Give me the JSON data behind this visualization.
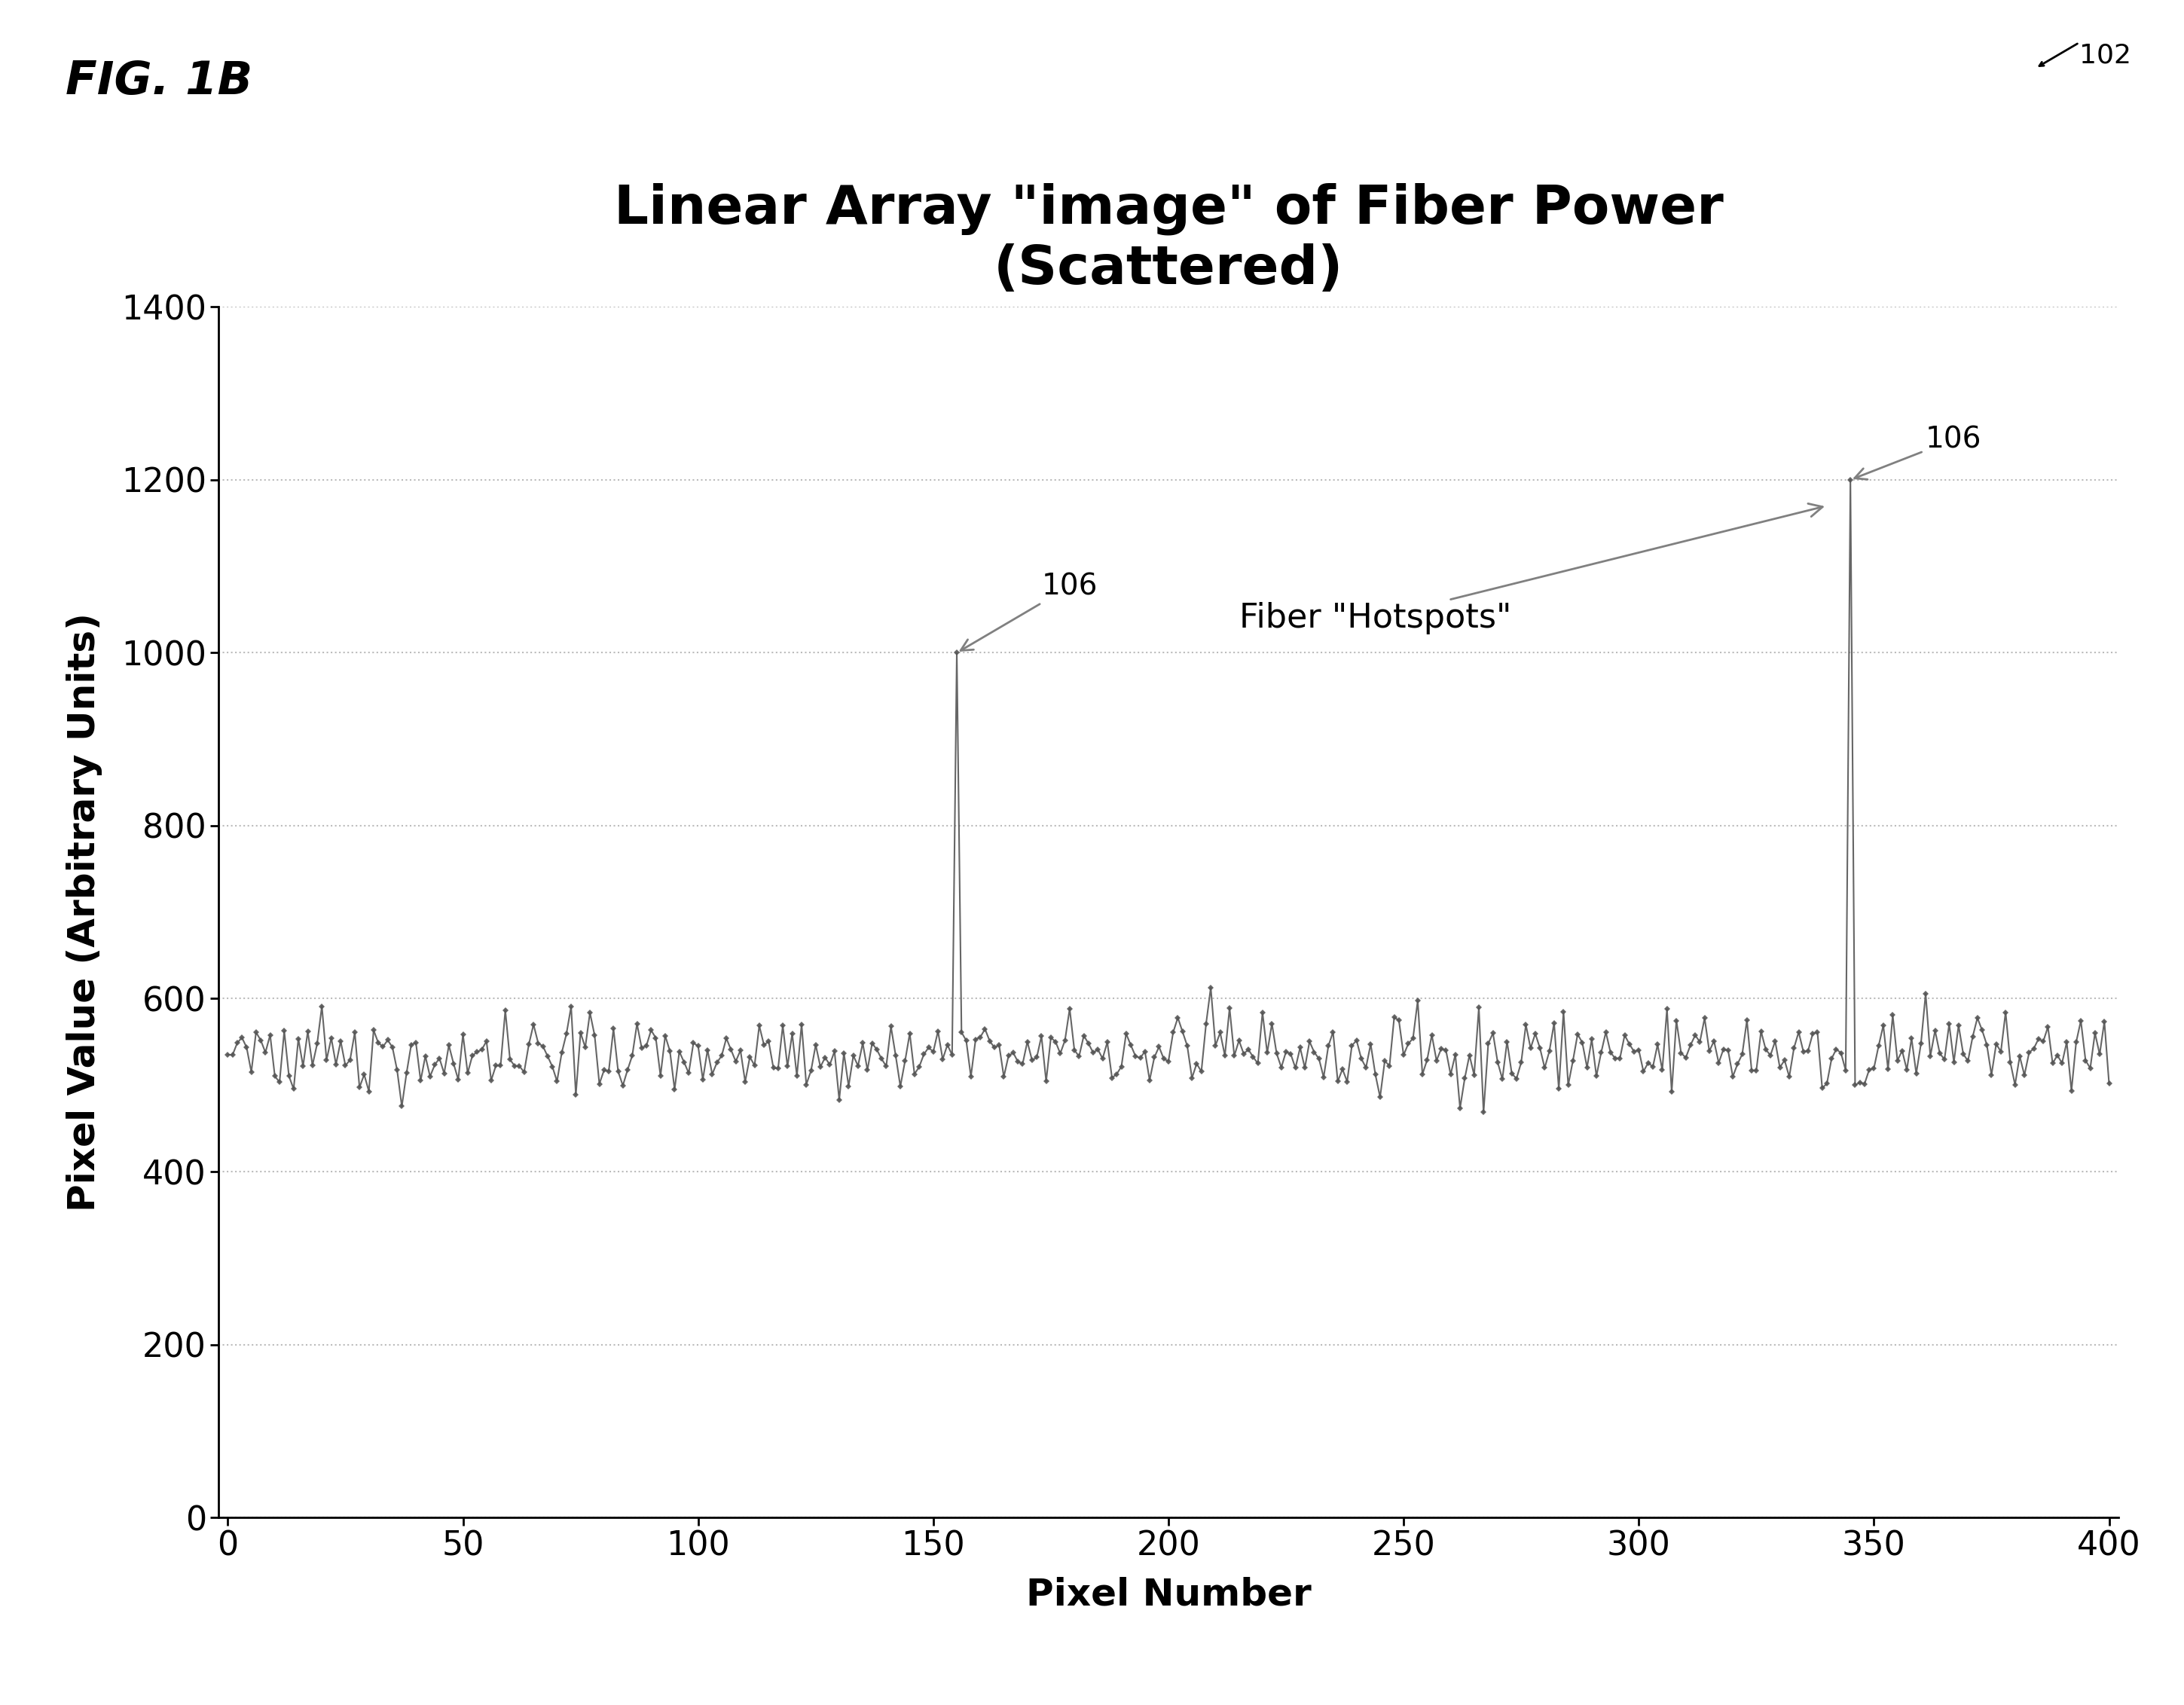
{
  "title_line1": "Linear Array \"image\" of Fiber Power",
  "title_line2": "(Scattered)",
  "xlabel": "Pixel Number",
  "ylabel": "Pixel Value (Arbitrary Units)",
  "xlim": [
    -2,
    402
  ],
  "ylim": [
    0,
    1400
  ],
  "xticks": [
    0,
    50,
    100,
    150,
    200,
    250,
    300,
    350,
    400
  ],
  "yticks": [
    0,
    200,
    400,
    600,
    800,
    1000,
    1200,
    1400
  ],
  "noise_mean": 537,
  "noise_std": 28,
  "spike1_x": 155,
  "spike1_y": 1000,
  "spike2_x": 345,
  "spike2_y": 1200,
  "fig_label": "FIG. 1B",
  "ref_num_fig": "102",
  "ref_num_spike": "106",
  "annotation_text": "Fiber \"Hotspots\"",
  "data_color": "#555555",
  "background_color": "#ffffff",
  "grid_color": "#bbbbbb",
  "title_fontsize": 52,
  "label_fontsize": 36,
  "tick_fontsize": 32,
  "annotation_fontsize": 28,
  "fig_label_fontsize": 44,
  "ref102_fontsize": 26,
  "marker_size": 4.5,
  "line_width": 1.5
}
